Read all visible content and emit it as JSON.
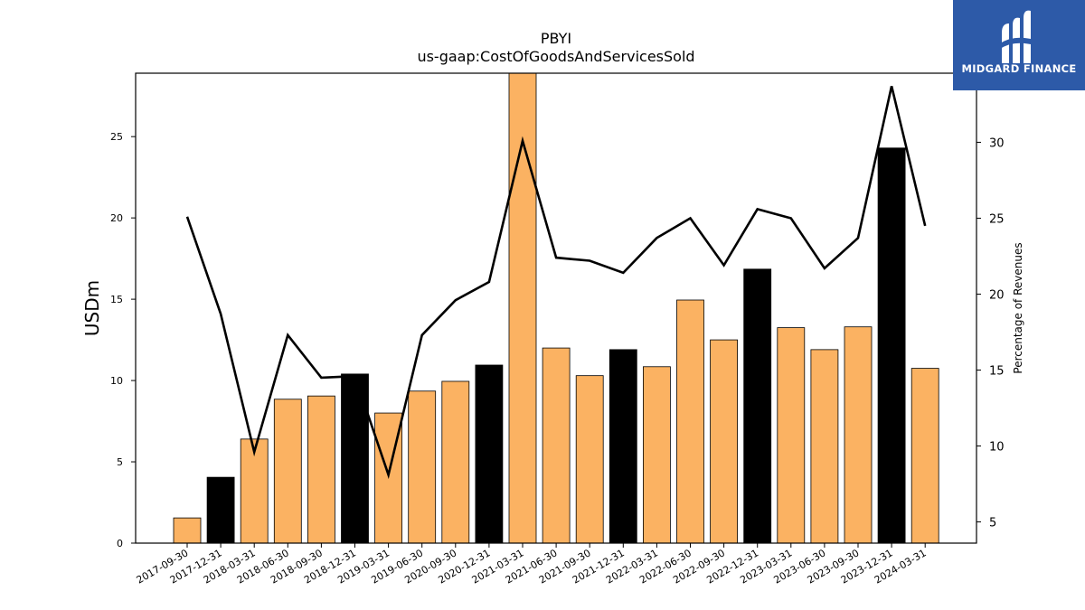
{
  "chart_data": {
    "type": "bar",
    "title": "PBYI",
    "subtitle": "us-gaap:CostOfGoodsAndServicesSold",
    "ylabel": "USDm",
    "y2label": "Percentage of Revenues",
    "categories": [
      "2017-09-30",
      "2017-12-31",
      "2018-03-31",
      "2018-06-30",
      "2018-09-30",
      "2018-12-31",
      "2019-03-31",
      "2019-06-30",
      "2020-09-30",
      "2020-12-31",
      "2021-03-31",
      "2021-06-30",
      "2021-09-30",
      "2021-12-31",
      "2022-03-31",
      "2022-06-30",
      "2022-09-30",
      "2022-12-31",
      "2023-03-31",
      "2023-06-30",
      "2023-09-30",
      "2023-12-31",
      "2024-03-31"
    ],
    "series": [
      {
        "type": "bar",
        "axis": "left",
        "values": [
          1.55,
          4.05,
          6.4,
          8.85,
          9.05,
          10.4,
          8.0,
          9.35,
          9.95,
          10.95,
          28.9,
          12.0,
          10.3,
          11.9,
          10.85,
          14.95,
          12.5,
          16.85,
          13.25,
          11.9,
          13.3,
          24.3,
          10.75
        ],
        "colors": [
          "#fbb262",
          "#000000",
          "#fbb262",
          "#fbb262",
          "#fbb262",
          "#000000",
          "#fbb262",
          "#fbb262",
          "#fbb262",
          "#000000",
          "#fbb262",
          "#fbb262",
          "#fbb262",
          "#000000",
          "#fbb262",
          "#fbb262",
          "#fbb262",
          "#000000",
          "#fbb262",
          "#fbb262",
          "#fbb262",
          "#000000",
          "#fbb262"
        ]
      },
      {
        "type": "line",
        "axis": "right",
        "values": [
          25.1,
          18.7,
          9.6,
          17.3,
          14.5,
          14.6,
          8.1,
          17.3,
          19.6,
          20.8,
          30.1,
          22.4,
          22.2,
          21.4,
          23.7,
          25.0,
          21.9,
          25.6,
          25.0,
          21.7,
          23.7,
          33.7,
          24.5
        ],
        "color": "#000000"
      }
    ],
    "ylim": [
      0,
      28.9
    ],
    "y2lim": [
      3.6,
      34.55
    ],
    "yticks": [
      0,
      5,
      10,
      15,
      20,
      25
    ],
    "y2ticks": [
      5,
      10,
      15,
      20,
      25,
      30
    ],
    "grid": false
  },
  "logo": {
    "text": "MIDGARD FINANCE"
  }
}
